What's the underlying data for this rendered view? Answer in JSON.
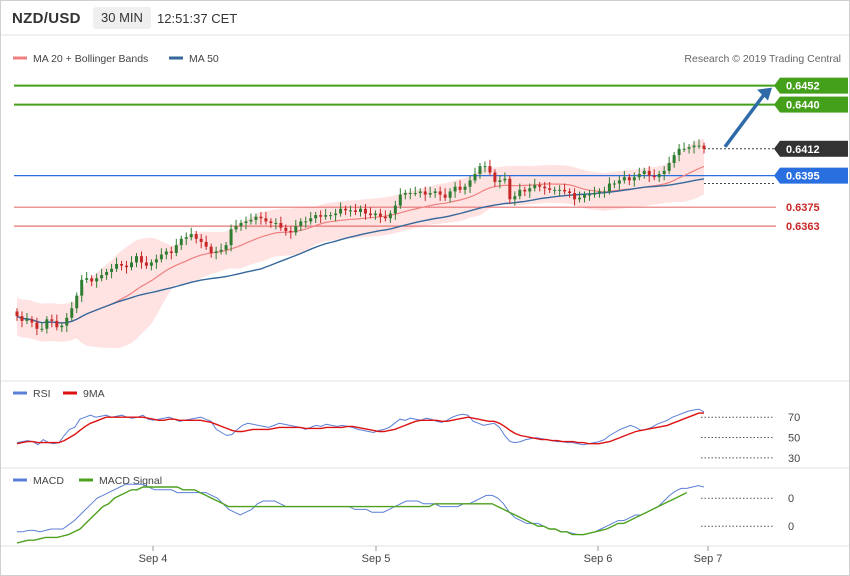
{
  "header": {
    "symbol": "NZD/USD",
    "timeframe": "30 MIN",
    "time": "12:51:37 CET"
  },
  "colors": {
    "up": "#2e7d32",
    "down": "#c62828",
    "bollinger_fill": "#ffe3e3",
    "ma20": "#f08080",
    "ma50": "#36689b",
    "target_line": "#44a01a",
    "pivot_line": "#2a6fe0",
    "support_line": "#e57373",
    "arrow": "#2f6aa8",
    "rsi": "#5b7fd6",
    "rsi_ma": "#dd1111",
    "macd": "#5b7fd6",
    "macd_signal": "#4ea11e"
  },
  "legend": {
    "main": [
      {
        "label": "MA 20 + Bollinger Bands",
        "color": "#f08080"
      },
      {
        "label": "MA 50",
        "color": "#36689b"
      }
    ],
    "rsi": [
      {
        "label": "RSI",
        "color": "#5b7fd6"
      },
      {
        "label": "9MA",
        "color": "#dd1111"
      }
    ],
    "macd": [
      {
        "label": "MACD",
        "color": "#5b7fd6"
      },
      {
        "label": "MACD Signal",
        "color": "#4ea11e"
      }
    ]
  },
  "copyright": "Research © 2019 Trading Central",
  "chart_data": [
    {
      "type": "candlestick",
      "panel": "price",
      "ylim": [
        0.627,
        0.646
      ],
      "x_labels": [
        "Sep 4",
        "Sep 5",
        "Sep 6",
        "Sep 7"
      ],
      "current_price": 0.6412,
      "levels": [
        {
          "value": 0.6452,
          "label": "0.6452",
          "kind": "target"
        },
        {
          "value": 0.644,
          "label": "0.6440",
          "kind": "target"
        },
        {
          "value": 0.6412,
          "label": "0.6412",
          "kind": "current"
        },
        {
          "value": 0.6395,
          "label": "0.6395",
          "kind": "pivot"
        },
        {
          "value": 0.6375,
          "label": "0.6375",
          "kind": "support"
        },
        {
          "value": 0.6363,
          "label": "0.6363",
          "kind": "support"
        }
      ],
      "close": [
        0.6306,
        0.6303,
        0.6304,
        0.6302,
        0.6298,
        0.6298,
        0.6304,
        0.6303,
        0.6299,
        0.63,
        0.6305,
        0.6311,
        0.6319,
        0.6329,
        0.633,
        0.6328,
        0.633,
        0.6332,
        0.6334,
        0.6336,
        0.6339,
        0.6338,
        0.6337,
        0.634,
        0.6344,
        0.634,
        0.6338,
        0.634,
        0.6342,
        0.6345,
        0.6347,
        0.6346,
        0.6351,
        0.6355,
        0.6356,
        0.6358,
        0.6355,
        0.6353,
        0.635,
        0.6346,
        0.6347,
        0.6348,
        0.6351,
        0.6361,
        0.6363,
        0.6365,
        0.6366,
        0.6367,
        0.6369,
        0.6368,
        0.6366,
        0.6365,
        0.6365,
        0.6362,
        0.636,
        0.6359,
        0.6363,
        0.6366,
        0.6366,
        0.6368,
        0.637,
        0.6369,
        0.637,
        0.637,
        0.6371,
        0.6374,
        0.6373,
        0.6373,
        0.6372,
        0.6374,
        0.6371,
        0.637,
        0.6371,
        0.6369,
        0.6368,
        0.6371,
        0.6376,
        0.6383,
        0.6384,
        0.6384,
        0.6384,
        0.6385,
        0.6383,
        0.6384,
        0.6385,
        0.6383,
        0.6381,
        0.6385,
        0.6388,
        0.6386,
        0.6388,
        0.6392,
        0.6396,
        0.6401,
        0.6401,
        0.6397,
        0.6391,
        0.6392,
        0.6393,
        0.638,
        0.6382,
        0.6386,
        0.6385,
        0.6387,
        0.6389,
        0.6388,
        0.6387,
        0.6386,
        0.6386,
        0.6386,
        0.6385,
        0.6384,
        0.638,
        0.6381,
        0.6383,
        0.6383,
        0.6384,
        0.6385,
        0.6385,
        0.639,
        0.639,
        0.6392,
        0.6394,
        0.6392,
        0.6394,
        0.6396,
        0.6398,
        0.6395,
        0.6394,
        0.6396,
        0.6398,
        0.6403,
        0.6408,
        0.6412,
        0.6412,
        0.6413,
        0.6414,
        0.6414,
        0.6412
      ]
    },
    {
      "type": "line",
      "panel": "rsi",
      "ylim": [
        25,
        82
      ],
      "gridlines": [
        70,
        50,
        30
      ],
      "series": [
        {
          "name": "RSI",
          "values": [
            45,
            46,
            47,
            46,
            43,
            48,
            45,
            44,
            45,
            52,
            58,
            60,
            68,
            70,
            72,
            70,
            71,
            72,
            70,
            71,
            72,
            70,
            69,
            70,
            72,
            68,
            67,
            68,
            69,
            70,
            68,
            66,
            67,
            68,
            69,
            70,
            68,
            66,
            58,
            55,
            52,
            53,
            58,
            62,
            64,
            63,
            62,
            61,
            60,
            62,
            64,
            63,
            62,
            61,
            60,
            58,
            60,
            62,
            61,
            63,
            62,
            61,
            62,
            61,
            60,
            58,
            57,
            56,
            55,
            57,
            58,
            60,
            64,
            68,
            67,
            69,
            68,
            67,
            69,
            68,
            66,
            65,
            67,
            70,
            72,
            73,
            72,
            66,
            64,
            62,
            63,
            64,
            60,
            52,
            46,
            45,
            46,
            48,
            49,
            50,
            49,
            48,
            47,
            46,
            46,
            45,
            45,
            44,
            43,
            44,
            45,
            46,
            48,
            52,
            55,
            58,
            60,
            62,
            60,
            57,
            58,
            60,
            63,
            65,
            67,
            70,
            72,
            74,
            76,
            77,
            78,
            75
          ]
        },
        {
          "name": "9MA",
          "values": [
            44,
            45,
            46,
            46,
            45,
            45,
            45,
            45,
            45,
            47,
            50,
            53,
            57,
            61,
            64,
            66,
            68,
            70,
            70,
            70,
            70,
            70,
            70,
            70,
            70,
            69,
            68,
            67,
            67,
            68,
            68,
            67,
            67,
            67,
            67,
            67,
            66,
            65,
            63,
            61,
            59,
            57,
            56,
            56,
            57,
            58,
            58,
            58,
            58,
            59,
            60,
            60,
            60,
            60,
            60,
            59,
            59,
            59,
            59,
            60,
            60,
            60,
            60,
            61,
            61,
            60,
            59,
            58,
            57,
            56,
            56,
            57,
            58,
            60,
            62,
            64,
            66,
            67,
            67,
            67,
            67,
            66,
            66,
            67,
            68,
            69,
            70,
            69,
            68,
            67,
            66,
            66,
            64,
            61,
            57,
            54,
            52,
            51,
            50,
            49,
            48,
            48,
            47,
            47,
            46,
            46,
            46,
            45,
            45,
            44,
            44,
            44,
            45,
            46,
            48,
            50,
            52,
            54,
            56,
            57,
            58,
            59,
            60,
            61,
            62,
            64,
            66,
            68,
            70,
            72,
            74,
            74
          ]
        }
      ]
    },
    {
      "type": "line",
      "panel": "macd",
      "ylim": [
        -0.0016,
        0.0004
      ],
      "gridlines": [
        0,
        -0.001
      ],
      "tick_labels": [
        "0",
        "0"
      ],
      "series": [
        {
          "name": "MACD",
          "values": [
            -0.0012,
            -0.0012,
            -0.00115,
            -0.00115,
            -0.0012,
            -0.00115,
            -0.0011,
            -0.0011,
            -0.0011,
            -0.00095,
            -0.0008,
            -0.0006,
            -0.0004,
            -0.0002,
            0.0,
            0.0001,
            0.0002,
            0.0003,
            0.0004,
            0.0005,
            0.0005,
            0.0005,
            0.0005,
            0.0004,
            0.0003,
            0.0003,
            0.0003,
            0.0003,
            0.0002,
            0.0002,
            0.0002,
            0.0002,
            0.0002,
            0.0002,
            0.0001,
            0.0,
            -0.0002,
            -0.0004,
            -0.0005,
            -0.0006,
            -0.0005,
            -0.0004,
            -0.0002,
            -0.0001,
            -0.0001,
            -0.0001,
            -0.0002,
            -0.0003,
            -0.0003,
            -0.0003,
            -0.0003,
            -0.0003,
            -0.0003,
            -0.0003,
            -0.0003,
            -0.0003,
            -0.0003,
            -0.0003,
            -0.0003,
            -0.0004,
            -0.0004,
            -0.0004,
            -0.0005,
            -0.0005,
            -0.0005,
            -0.0004,
            -0.0003,
            -0.0002,
            -0.0001,
            -0.0001,
            -0.0001,
            -0.0002,
            -0.0002,
            -0.0002,
            -0.0003,
            -0.0003,
            -0.0003,
            -0.0003,
            -0.0002,
            -0.0002,
            -0.0001,
            0.0,
            0.0001,
            0.0001,
            0.0,
            -0.0002,
            -0.0005,
            -0.0007,
            -0.0008,
            -0.0009,
            -0.0009,
            -0.0009,
            -0.001,
            -0.0011,
            -0.0011,
            -0.0012,
            -0.0012,
            -0.00125,
            -0.0013,
            -0.0013,
            -0.00125,
            -0.0012,
            -0.0011,
            -0.001,
            -0.0009,
            -0.0008,
            -0.0008,
            -0.0007,
            -0.0006,
            -0.0006,
            -0.0005,
            -0.0004,
            -0.0003,
            -0.0001,
            0.0001,
            0.00025,
            0.00035,
            0.00035,
            0.0004,
            0.00045,
            0.0004
          ]
        },
        {
          "name": "MACD Signal",
          "values": [
            -0.0016,
            -0.00155,
            -0.0015,
            -0.0015,
            -0.00145,
            -0.0014,
            -0.0014,
            -0.0014,
            -0.00135,
            -0.0013,
            -0.0012,
            -0.0011,
            -0.0009,
            -0.0007,
            -0.0005,
            -0.0003,
            -0.0002,
            0.0,
            0.0001,
            0.0002,
            0.0003,
            0.0003,
            0.0004,
            0.0004,
            0.0004,
            0.0004,
            0.0004,
            0.0004,
            0.0004,
            0.0003,
            0.0003,
            0.0003,
            0.0002,
            0.0001,
            0.0,
            -0.0001,
            -0.0002,
            -0.0003,
            -0.0003,
            -0.0003,
            -0.0003,
            -0.0003,
            -0.0003,
            -0.0003,
            -0.0003,
            -0.0003,
            -0.0003,
            -0.0003,
            -0.0003,
            -0.0003,
            -0.0003,
            -0.0003,
            -0.0003,
            -0.0003,
            -0.0003,
            -0.0003,
            -0.0003,
            -0.0003,
            -0.0003,
            -0.0003,
            -0.0003,
            -0.0003,
            -0.0003,
            -0.0003,
            -0.0003,
            -0.0003,
            -0.0003,
            -0.0003,
            -0.0003,
            -0.0003,
            -0.0003,
            -0.0003,
            -0.0003,
            -0.0002,
            -0.0002,
            -0.0002,
            -0.0002,
            -0.0002,
            -0.0002,
            -0.0002,
            -0.0002,
            -0.0002,
            -0.0002,
            -0.0002,
            -0.0003,
            -0.0004,
            -0.0005,
            -0.0006,
            -0.0007,
            -0.0008,
            -0.0009,
            -0.001,
            -0.001,
            -0.0011,
            -0.0011,
            -0.0012,
            -0.0012,
            -0.0013,
            -0.0013,
            -0.0013,
            -0.00125,
            -0.0012,
            -0.00115,
            -0.0011,
            -0.001,
            -0.0009,
            -0.0009,
            -0.0008,
            -0.0007,
            -0.0006,
            -0.0005,
            -0.0004,
            -0.0003,
            -0.0002,
            -0.0001,
            0.0,
            0.0001,
            0.0002
          ]
        }
      ]
    }
  ]
}
